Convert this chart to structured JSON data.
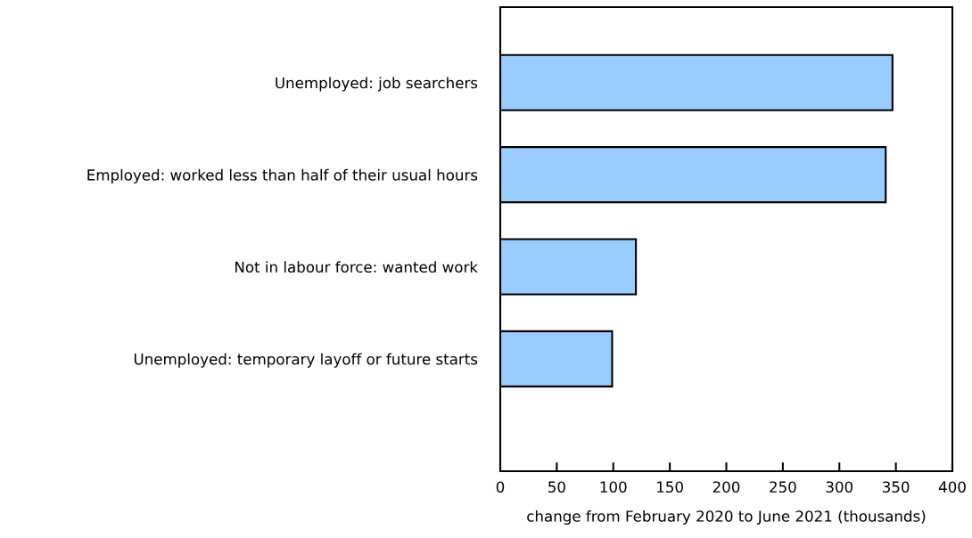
{
  "chart_data": {
    "type": "bar",
    "orientation": "horizontal",
    "xlabel": "change from February 2020 to June 2021 (thousands)",
    "categories": [
      "Unemployed: job searchers",
      "Employed: worked less than half of their usual hours",
      "Not in labour force: wanted work",
      "Unemployed: temporary layoff or future starts"
    ],
    "values": [
      347,
      341,
      120,
      99
    ],
    "color": "#99ccff",
    "xlim": [
      0,
      400
    ],
    "xticks": [
      0,
      50,
      100,
      150,
      200,
      250,
      300,
      350,
      400
    ],
    "grid": false
  }
}
